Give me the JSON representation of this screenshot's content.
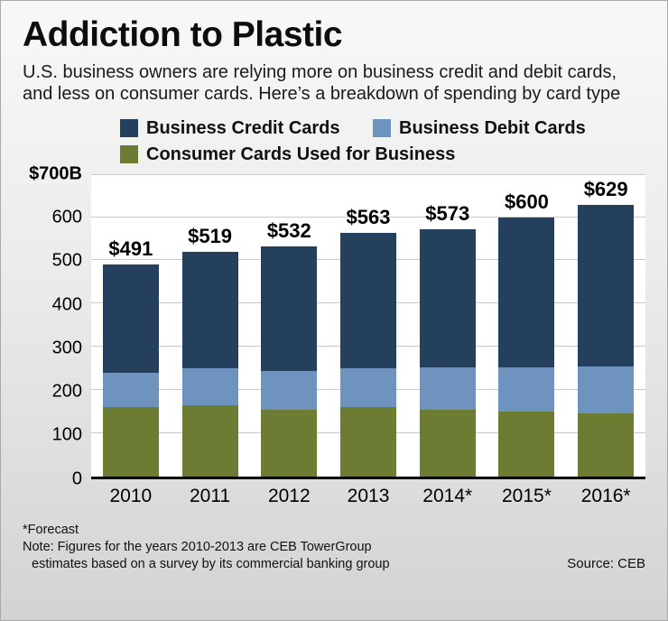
{
  "header": {
    "title": "Addiction to Plastic",
    "subtitle": "U.S. business owners are relying more on business credit and debit cards, and less on consumer cards. Here’s a breakdown of spending by card type"
  },
  "legend": [
    {
      "label": "Business Credit Cards",
      "color": "#24405c"
    },
    {
      "label": "Business Debit Cards",
      "color": "#6e93bf"
    },
    {
      "label": "Consumer Cards Used for Business",
      "color": "#6d7c33"
    }
  ],
  "chart_data": {
    "type": "bar",
    "stacked": true,
    "title": "Addiction to Plastic",
    "categories": [
      "2010",
      "2011",
      "2012",
      "2013",
      "2014*",
      "2015*",
      "2016*"
    ],
    "series": [
      {
        "key": "consumer",
        "name": "Consumer Cards Used for Business",
        "color": "#6d7c33",
        "values": [
          160,
          165,
          155,
          160,
          155,
          150,
          145
        ]
      },
      {
        "key": "debit",
        "name": "Business Debit Cards",
        "color": "#6e93bf",
        "values": [
          80,
          85,
          88,
          90,
          97,
          103,
          110
        ]
      },
      {
        "key": "credit",
        "name": "Business Credit Cards",
        "color": "#24405c",
        "values": [
          251,
          269,
          289,
          313,
          321,
          347,
          374
        ]
      }
    ],
    "totals": [
      491,
      519,
      532,
      563,
      573,
      600,
      629
    ],
    "total_labels": [
      "$491",
      "$519",
      "$532",
      "$563",
      "$573",
      "$600",
      "$629"
    ],
    "ylabel_top": "$700B",
    "yticks": [
      0,
      100,
      200,
      300,
      400,
      500,
      600
    ],
    "ylim": [
      0,
      700
    ],
    "grid": true,
    "legend_position": "top"
  },
  "footnotes": {
    "forecast": "*Forecast",
    "note_line1": "Note: Figures for the years 2010-2013 are CEB TowerGroup",
    "note_line2": "estimates based on a survey by its commercial banking group",
    "source": "Source: CEB"
  }
}
